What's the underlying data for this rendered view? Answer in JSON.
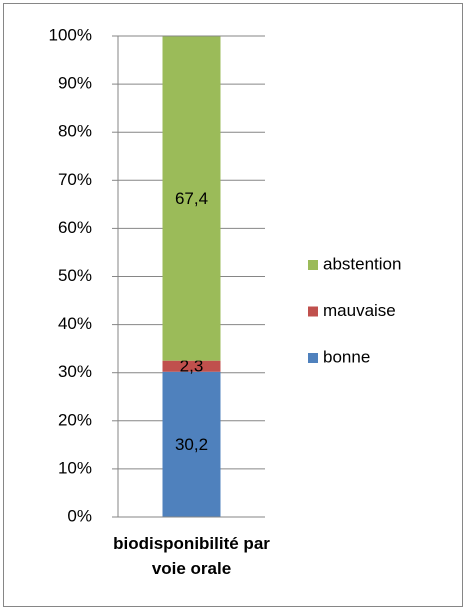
{
  "chart_data": {
    "type": "stacked_bar",
    "categories": [
      "biodisponibilité par voie orale"
    ],
    "series": [
      {
        "name": "bonne",
        "color": "#4f81bd",
        "values": [
          30.2
        ],
        "value_labels": [
          "30,2"
        ]
      },
      {
        "name": "mauvaise",
        "color": "#c0504d",
        "values": [
          2.3
        ],
        "value_labels": [
          "2,3"
        ]
      },
      {
        "name": "abstention",
        "color": "#9bbb59",
        "values": [
          67.4
        ],
        "value_labels": [
          "67,4"
        ]
      }
    ],
    "ylim": [
      0,
      100
    ],
    "yticks": [
      {
        "value": 0,
        "label": "0%"
      },
      {
        "value": 10,
        "label": "10%"
      },
      {
        "value": 20,
        "label": "20%"
      },
      {
        "value": 30,
        "label": "30%"
      },
      {
        "value": 40,
        "label": "40%"
      },
      {
        "value": 50,
        "label": "50%"
      },
      {
        "value": 60,
        "label": "60%"
      },
      {
        "value": 70,
        "label": "70%"
      },
      {
        "value": 80,
        "label": "80%"
      },
      {
        "value": 90,
        "label": "90%"
      },
      {
        "value": 100,
        "label": "100%"
      }
    ],
    "grid": true,
    "legend": "right"
  }
}
